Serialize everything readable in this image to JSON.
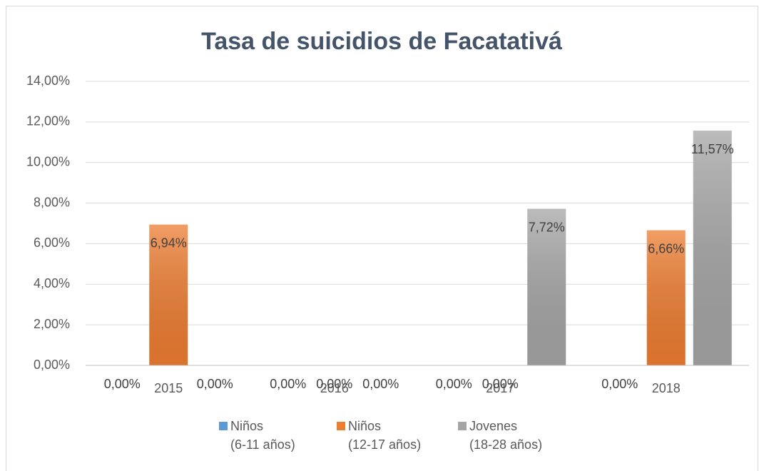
{
  "chart_data": {
    "type": "bar",
    "title": "Tasa de suicidios de Facatativá",
    "categories": [
      "2015",
      "2016",
      "2017",
      "2018"
    ],
    "series": [
      {
        "name": "Niños\n(6-11 años)",
        "color": "#5b9bd5",
        "values": [
          0,
          0,
          0,
          0
        ],
        "value_labels": [
          "0,00%",
          "0,00%",
          "0,00%",
          "0,00%"
        ]
      },
      {
        "name": "Niños\n(12-17 años)",
        "color": "#ed7d31",
        "values": [
          6.94,
          0,
          0,
          6.66
        ],
        "value_labels": [
          "6,94%",
          "0,00%",
          "0,00%",
          "6,66%"
        ]
      },
      {
        "name": "Jovenes\n(18-28 años)",
        "color": "#a5a5a5",
        "values": [
          0,
          0,
          7.72,
          11.57
        ],
        "value_labels": [
          "0,00%",
          "0,00%",
          "7,72%",
          "11,57%"
        ]
      }
    ],
    "ylim": [
      0,
      14
    ],
    "yticks": [
      {
        "value": 0,
        "label": "0,00%"
      },
      {
        "value": 2,
        "label": "2,00%"
      },
      {
        "value": 4,
        "label": "4,00%"
      },
      {
        "value": 6,
        "label": "6,00%"
      },
      {
        "value": 8,
        "label": "8,00%"
      },
      {
        "value": 10,
        "label": "10,00%"
      },
      {
        "value": 12,
        "label": "12,00%"
      },
      {
        "value": 14,
        "label": "14,00%"
      }
    ],
    "grid": true,
    "legend": "bottom"
  }
}
